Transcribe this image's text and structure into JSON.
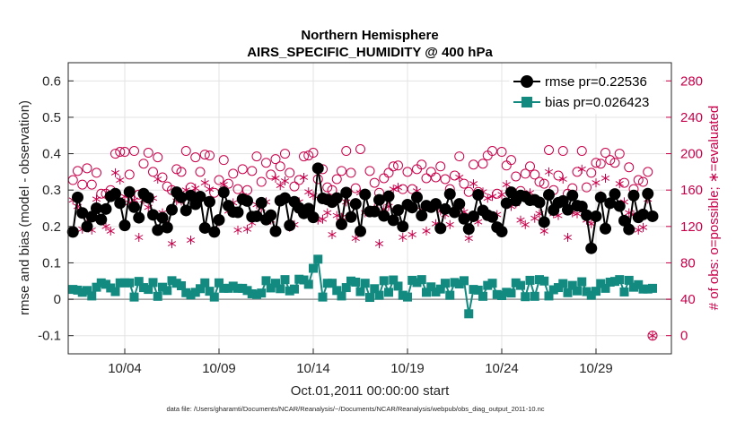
{
  "chart_data": {
    "type": "line",
    "title": "Northern Hemisphere",
    "subtitle": "AIRS_SPECIFIC_HUMIDITY @ 400 hPa",
    "xlabel": "Oct.01,2011 00:00:00 start",
    "ylabel": "rmse and bias (model - observation)",
    "ylabel_right": "# of obs: o=possible; ∗=evaluated",
    "footnote": "data file: /Users/gharamti/Documents/NCAR/Reanalysis/~/Documents/NCAR/Reanalysis/webpub/obs_diag_output_2011-10.nc",
    "x_ticks": [
      "10/04",
      "10/09",
      "10/14",
      "10/19",
      "10/24",
      "10/29"
    ],
    "x_tick_days": [
      4,
      9,
      14,
      19,
      24,
      29
    ],
    "xlim": [
      1,
      33
    ],
    "ylim": [
      -0.15,
      0.65
    ],
    "y_ticks": [
      "-0.1",
      "0",
      "0.1",
      "0.2",
      "0.3",
      "0.4",
      "0.5",
      "0.6"
    ],
    "y2lim": [
      -20,
      300
    ],
    "y2_ticks": [
      "0",
      "40",
      "80",
      "120",
      "160",
      "200",
      "240",
      "280"
    ],
    "grid": true,
    "legend_position": "top-right",
    "colors": {
      "rmse": "#000000",
      "bias": "#138a80",
      "obs": "#c8004a",
      "grid": "#e3e3e3",
      "zero_line": "#9a9a9a"
    },
    "series": [
      {
        "name": "rmse pr=0.22536",
        "axis": "left",
        "marker": "filled-circle",
        "values": []
      },
      {
        "name": "bias pr=0.026423",
        "axis": "left",
        "marker": "filled-square",
        "values": []
      },
      {
        "name": "",
        "axis": "right",
        "marker": "open-circle",
        "values": []
      },
      {
        "name": "",
        "axis": "right",
        "marker": "asterisk",
        "values": []
      }
    ]
  }
}
